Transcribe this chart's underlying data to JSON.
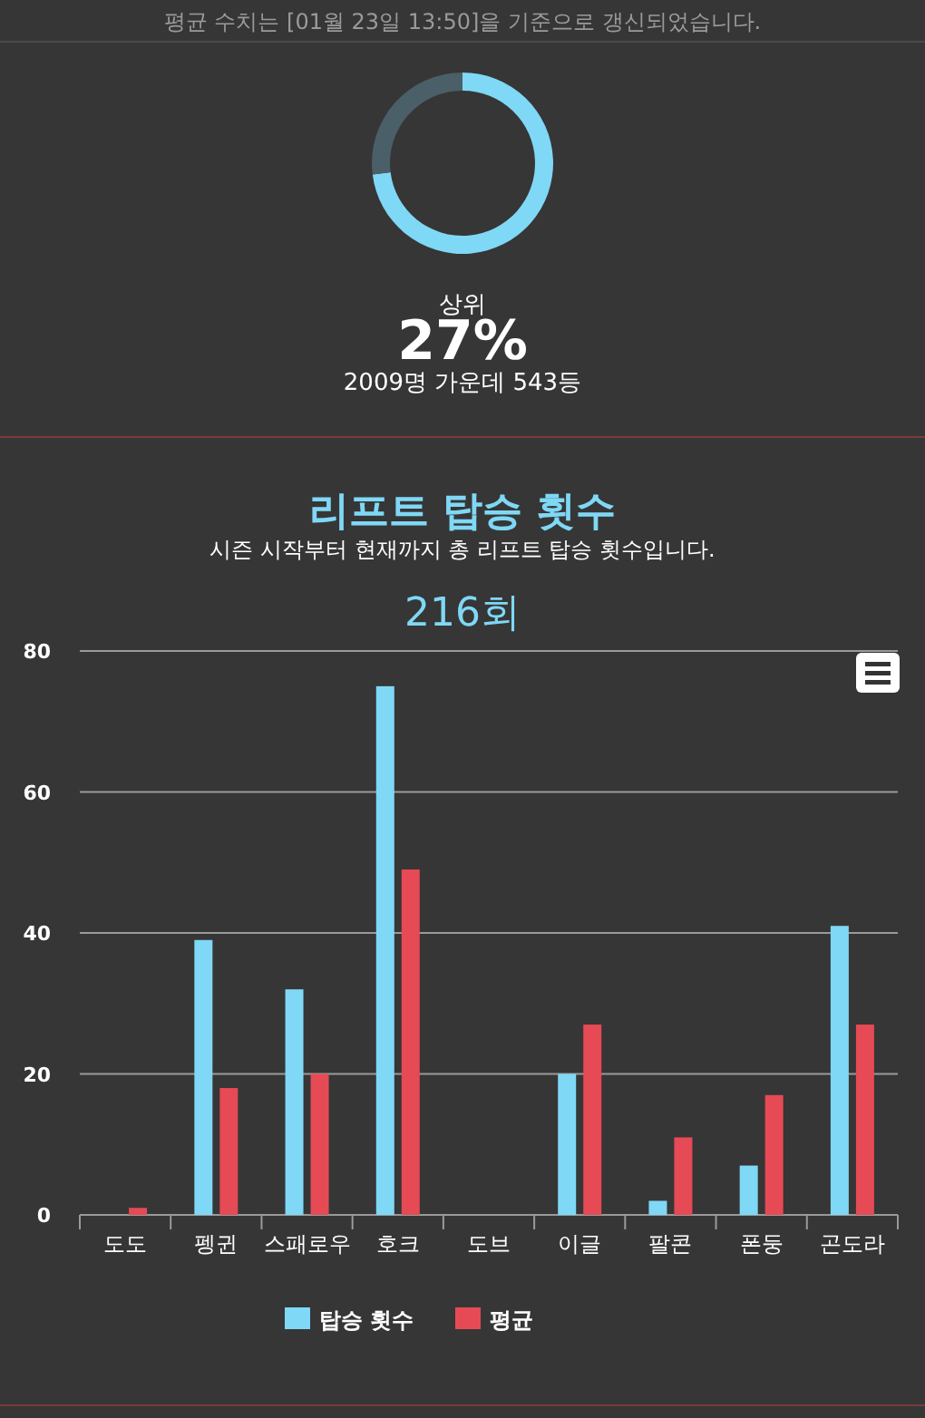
{
  "chart_data": [
    {
      "type": "donut",
      "categories": [
        null,
        null
      ],
      "values": [
        73,
        27
      ],
      "colors": [
        "#7fd8f5",
        "#4a5f68"
      ],
      "annotations": [
        "평균 수치는 [01월 23일 13:50]을 기준으로 갱신되었습니다.",
        "상위",
        "27%",
        "2009명 가운데 543등"
      ]
    },
    {
      "type": "bar",
      "title": "리프트 탑승 횟수",
      "subtitle": "시즌 시작부터 현재까지 총 리프트 탑승 횟수입니다.",
      "annotations": [
        "216회"
      ],
      "categories": [
        "도도",
        "펭귄",
        "스패로우",
        "호크",
        "도브",
        "이글",
        "팔콘",
        "폰둥",
        "곤도라"
      ],
      "series": [
        {
          "name": "탑승 횟수",
          "color": "#7fd8f5",
          "values": [
            0,
            39,
            32,
            75,
            0,
            20,
            2,
            7,
            41
          ]
        },
        {
          "name": "평균",
          "color": "#e64a55",
          "values": [
            1,
            18,
            20,
            49,
            0,
            27,
            11,
            17,
            27
          ]
        }
      ],
      "ylim": [
        0,
        80
      ],
      "yticks": [
        0,
        20,
        40,
        60,
        80
      ],
      "grid": "y",
      "legend": "bottom"
    }
  ]
}
